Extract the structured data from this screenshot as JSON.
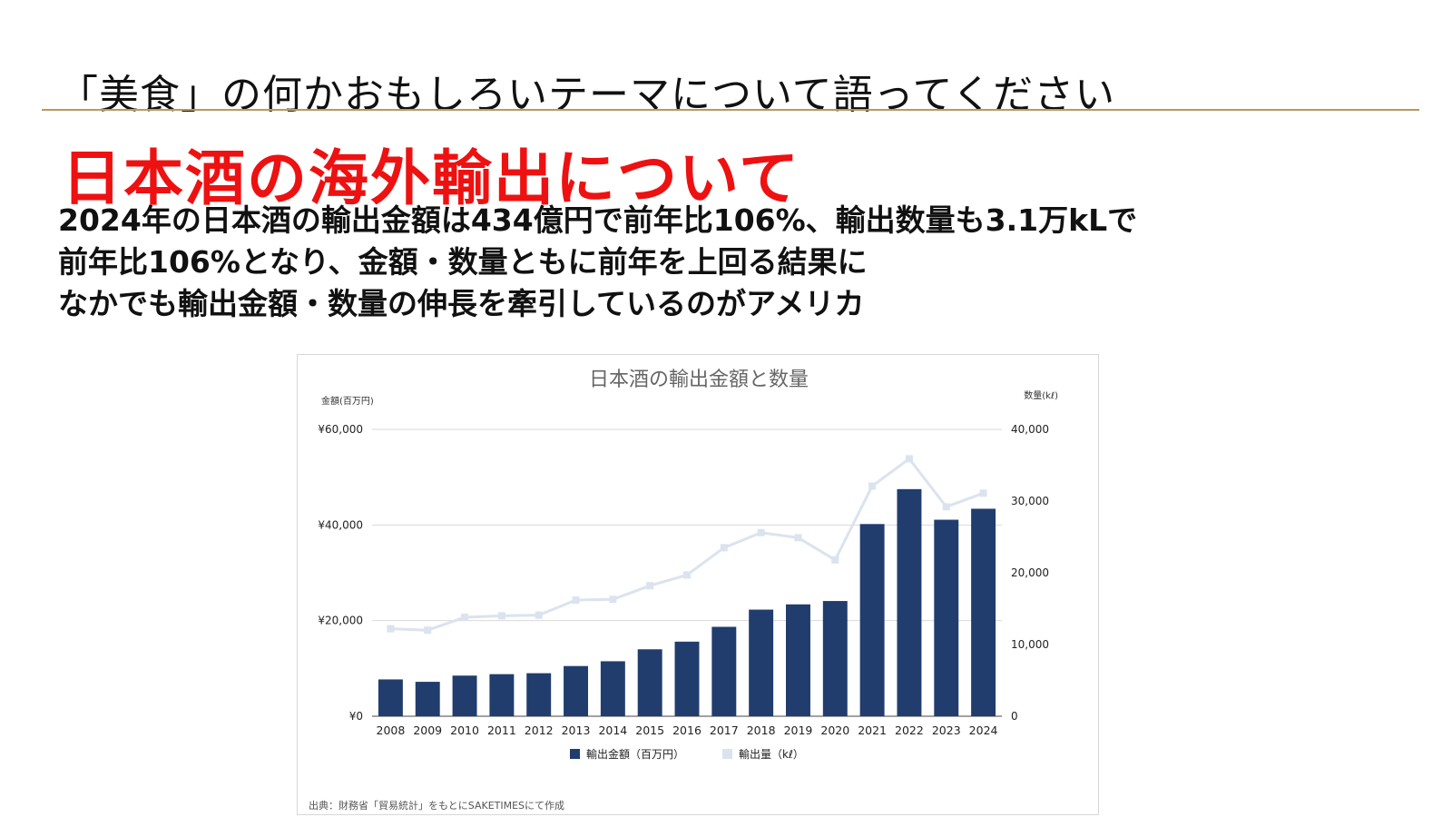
{
  "slide": {
    "title": "「美食」の何かおもしろいテーマについて語ってください",
    "headline": "日本酒の海外輸出について",
    "summary_lines": [
      "2024年の日本酒の輸出金額は434億円で前年比106%、輸出数量も3.1万kLで",
      "前年比106%となり、金額・数量ともに前年を上回る結果に",
      "なかでも輸出金額・数量の伸長を牽引しているのがアメリカ"
    ],
    "accent_color": "#ee1111",
    "rule_color": "#b89a5a"
  },
  "chart_data": {
    "type": "bar",
    "title": "日本酒の輸出金額と数量",
    "ylabel_left": "金額(百万円)",
    "ylabel_right": "数量(kℓ)",
    "categories": [
      "2008",
      "2009",
      "2010",
      "2011",
      "2012",
      "2013",
      "2014",
      "2015",
      "2016",
      "2017",
      "2018",
      "2019",
      "2020",
      "2021",
      "2022",
      "2023",
      "2024"
    ],
    "ylim_left": [
      0,
      60000
    ],
    "ylim_right": [
      0,
      40000
    ],
    "yticks_left": [
      "¥0",
      "¥20,000",
      "¥40,000",
      "¥60,000"
    ],
    "yticks_left_values": [
      0,
      20000,
      40000,
      60000
    ],
    "yticks_right": [
      "0",
      "10,000",
      "20,000",
      "30,000",
      "40,000"
    ],
    "yticks_right_values": [
      0,
      10000,
      20000,
      30000,
      40000
    ],
    "grid": true,
    "legend_position": "bottom",
    "series": [
      {
        "name": "輸出金額（百万円）",
        "kind": "bar",
        "axis": "left",
        "color": "#213d6e",
        "values": [
          7700,
          7200,
          8500,
          8800,
          9000,
          10500,
          11500,
          14000,
          15600,
          18700,
          22300,
          23400,
          24100,
          40200,
          47500,
          41100,
          43400
        ]
      },
      {
        "name": "輸出量（kℓ）",
        "kind": "line",
        "axis": "right",
        "color": "#dbe3ee",
        "values": [
          12200,
          12000,
          13800,
          14000,
          14100,
          16200,
          16300,
          18200,
          19700,
          23500,
          25600,
          24900,
          21800,
          32100,
          35900,
          29200,
          31100
        ]
      }
    ],
    "source_note": "出典：財務省「貿易統計」をもとにSAKETIMESにて作成"
  }
}
